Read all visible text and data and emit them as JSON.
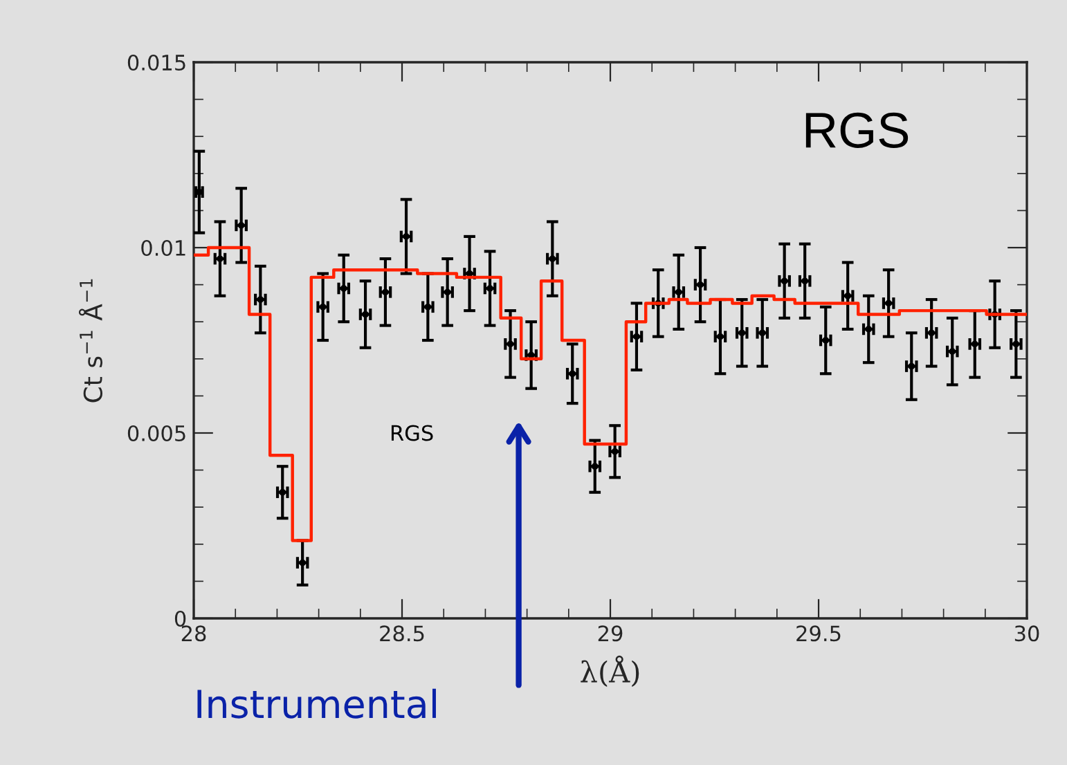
{
  "chart_data": {
    "type": "scatter",
    "xlabel": "λ(Å)",
    "ylabel": "Ct s$^{−1}$ Å$^{−1}$",
    "xlim": [
      28,
      30
    ],
    "xticks": [
      28,
      28.5,
      29,
      29.5,
      30
    ],
    "ylim": [
      0,
      0.015
    ],
    "yticks": [
      0,
      0.005,
      0.01,
      0.015
    ],
    "grid": false,
    "legend": false,
    "annotations": [
      "RGS",
      "RGS",
      "Instrumental"
    ],
    "series": [
      {
        "color": "#000000",
        "x": [
          28.013,
          28.063,
          28.114,
          28.16,
          28.213,
          28.261,
          28.31,
          28.36,
          28.412,
          28.46,
          28.51,
          28.562,
          28.609,
          28.662,
          28.711,
          28.76,
          28.81,
          28.861,
          28.909,
          28.963,
          29.011,
          29.063,
          29.115,
          29.164,
          29.216,
          29.264,
          29.316,
          29.365,
          29.418,
          29.467,
          29.517,
          29.57,
          29.62,
          29.668,
          29.723,
          29.771,
          29.821,
          29.875,
          29.923,
          29.974
        ],
        "values": [
          0.0115,
          0.0097,
          0.0106,
          0.0086,
          0.0034,
          0.0015,
          0.0084,
          0.0089,
          0.0082,
          0.0088,
          0.0103,
          0.0084,
          0.0088,
          0.0093,
          0.0089,
          0.0074,
          0.0071,
          0.0097,
          0.0066,
          0.0041,
          0.0045,
          0.0076,
          0.0085,
          0.0088,
          0.009,
          0.0076,
          0.0077,
          0.0077,
          0.0091,
          0.0091,
          0.0075,
          0.0087,
          0.0078,
          0.0085,
          0.0068,
          0.0077,
          0.0072,
          0.0074,
          0.0082,
          0.0074
        ],
        "xerrors": [
          0.008,
          0.012,
          0.012,
          0.012,
          0.012,
          0.012,
          0.012,
          0.012,
          0.012,
          0.012,
          0.012,
          0.012,
          0.012,
          0.012,
          0.012,
          0.012,
          0.012,
          0.012,
          0.012,
          0.012,
          0.012,
          0.012,
          0.012,
          0.012,
          0.012,
          0.012,
          0.012,
          0.012,
          0.012,
          0.012,
          0.012,
          0.012,
          0.012,
          0.012,
          0.012,
          0.012,
          0.012,
          0.012,
          0.012,
          0.012
        ],
        "errors": [
          0.0011,
          0.001,
          0.001,
          0.0009,
          0.0007,
          0.0006,
          0.0009,
          0.0009,
          0.0009,
          0.0009,
          0.001,
          0.0009,
          0.0009,
          0.001,
          0.001,
          0.0009,
          0.0009,
          0.001,
          0.0008,
          0.0007,
          0.0007,
          0.0009,
          0.0009,
          0.001,
          0.001,
          0.001,
          0.0009,
          0.0009,
          0.001,
          0.001,
          0.0009,
          0.0009,
          0.0009,
          0.0009,
          0.0009,
          0.0009,
          0.0009,
          0.0009,
          0.0009,
          0.0009
        ]
      },
      {
        "type": "step",
        "color": "#ff2200",
        "x": [
          28.0,
          28.035,
          28.133,
          28.183,
          28.237,
          28.282,
          28.336,
          28.434,
          28.537,
          28.631,
          28.737,
          28.786,
          28.834,
          28.884,
          28.938,
          29.038,
          29.085,
          29.141,
          29.185,
          29.24,
          29.293,
          29.34,
          29.393,
          29.443,
          29.545,
          29.595,
          29.694,
          29.903,
          29.949,
          30.0
        ],
        "values": [
          0.0098,
          0.01,
          0.0082,
          0.0044,
          0.0021,
          0.0092,
          0.0094,
          0.0094,
          0.0093,
          0.0092,
          0.0081,
          0.007,
          0.0091,
          0.0075,
          0.0047,
          0.008,
          0.0085,
          0.0086,
          0.0085,
          0.0086,
          0.0085,
          0.0087,
          0.0086,
          0.0085,
          0.0085,
          0.0082,
          0.0083,
          0.0082,
          0.0082,
          0.0082
        ]
      }
    ]
  }
}
